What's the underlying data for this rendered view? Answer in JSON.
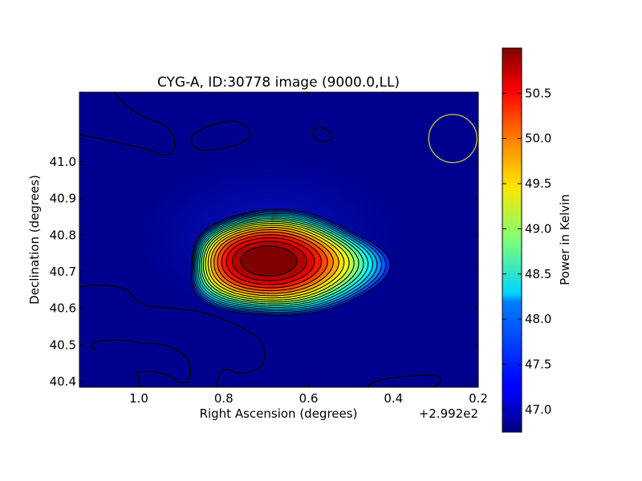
{
  "chart_data": {
    "type": "heatmap",
    "title": "CYG-A, ID:30778 image (9000.0,LL)",
    "xlabel": "Right Ascension (degrees)",
    "ylabel": "Declination (degrees)",
    "x_offset_label": "+2.992e2",
    "x_offset": 299.2,
    "xlim": [
      1.14,
      0.2
    ],
    "ylim": [
      40.385,
      41.19
    ],
    "x_ticks": [
      1.0,
      0.8,
      0.6,
      0.4,
      0.2
    ],
    "x_tick_labels": [
      "1.0",
      "0.8",
      "0.6",
      "0.4",
      "0.2"
    ],
    "y_ticks": [
      40.4,
      40.5,
      40.6,
      40.7,
      40.8,
      40.9,
      41.0
    ],
    "y_tick_labels": [
      "40.4",
      "40.5",
      "40.6",
      "40.7",
      "40.8",
      "40.9",
      "41.0"
    ],
    "colormap": "jet",
    "peak": {
      "ra": 0.68,
      "dec": 40.73,
      "value": 51.0
    },
    "background_value": 46.75,
    "beam_marker": {
      "ra": 0.26,
      "dec": 41.02,
      "color": "#c8c832"
    },
    "colorbar": {
      "label": "Power in Kelvin",
      "range": [
        46.75,
        51.0
      ],
      "ticks": [
        47.0,
        47.5,
        48.0,
        48.5,
        49.0,
        49.5,
        50.0,
        50.5
      ],
      "tick_labels": [
        "47.0",
        "47.5",
        "48.0",
        "48.5",
        "49.0",
        "49.5",
        "50.0",
        "50.5"
      ]
    }
  }
}
